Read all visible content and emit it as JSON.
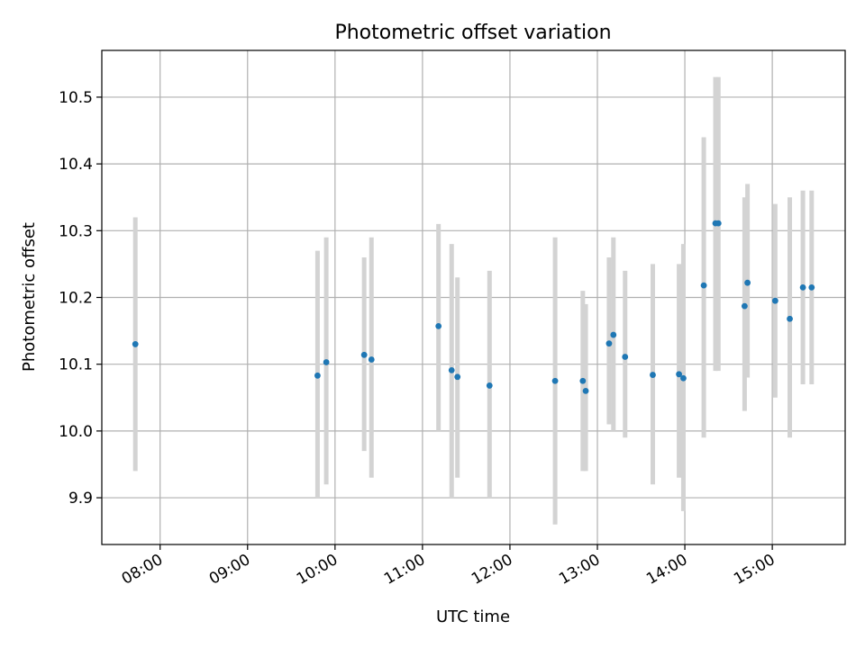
{
  "chart_data": {
    "type": "scatter",
    "title": "Photometric offset variation",
    "xlabel": "UTC time",
    "ylabel": "Photometric offset",
    "x_axis_type": "time",
    "xlim": [
      "07:20",
      "15:50"
    ],
    "ylim": [
      9.83,
      10.57
    ],
    "x_ticks": [
      "08:00",
      "09:00",
      "10:00",
      "11:00",
      "12:00",
      "13:00",
      "14:00",
      "15:00"
    ],
    "y_ticks": [
      9.9,
      10.0,
      10.1,
      10.2,
      10.3,
      10.4,
      10.5
    ],
    "y_tick_labels": [
      "9.9",
      "10.0",
      "10.1",
      "10.2",
      "10.3",
      "10.4",
      "10.5"
    ],
    "grid": true,
    "x_tick_rotation_deg": 30,
    "colors": {
      "point": "#1f77b4",
      "error_bar": "#d3d3d3"
    },
    "points": [
      {
        "time": "07:43",
        "y": 10.13,
        "y_low": 9.94,
        "y_high": 10.32
      },
      {
        "time": "09:48",
        "y": 10.083,
        "y_low": 9.9,
        "y_high": 10.27
      },
      {
        "time": "09:54",
        "y": 10.103,
        "y_low": 9.92,
        "y_high": 10.29
      },
      {
        "time": "10:20",
        "y": 10.114,
        "y_low": 9.97,
        "y_high": 10.26
      },
      {
        "time": "10:25",
        "y": 10.107,
        "y_low": 9.93,
        "y_high": 10.29
      },
      {
        "time": "11:11",
        "y": 10.157,
        "y_low": 10.0,
        "y_high": 10.31
      },
      {
        "time": "11:20",
        "y": 10.091,
        "y_low": 9.9,
        "y_high": 10.28
      },
      {
        "time": "11:24",
        "y": 10.081,
        "y_low": 9.93,
        "y_high": 10.23
      },
      {
        "time": "11:46",
        "y": 10.068,
        "y_low": 9.9,
        "y_high": 10.24
      },
      {
        "time": "12:31",
        "y": 10.075,
        "y_low": 9.86,
        "y_high": 10.29
      },
      {
        "time": "12:50",
        "y": 10.075,
        "y_low": 9.94,
        "y_high": 10.21
      },
      {
        "time": "12:52",
        "y": 10.06,
        "y_low": 9.94,
        "y_high": 10.19
      },
      {
        "time": "13:08",
        "y": 10.131,
        "y_low": 10.01,
        "y_high": 10.26
      },
      {
        "time": "13:11",
        "y": 10.144,
        "y_low": 10.0,
        "y_high": 10.29
      },
      {
        "time": "13:19",
        "y": 10.111,
        "y_low": 9.99,
        "y_high": 10.24
      },
      {
        "time": "13:38",
        "y": 10.084,
        "y_low": 9.92,
        "y_high": 10.25
      },
      {
        "time": "13:56",
        "y": 10.085,
        "y_low": 9.93,
        "y_high": 10.25
      },
      {
        "time": "13:59",
        "y": 10.079,
        "y_low": 9.88,
        "y_high": 10.28
      },
      {
        "time": "14:13",
        "y": 10.218,
        "y_low": 9.99,
        "y_high": 10.44
      },
      {
        "time": "14:21",
        "y": 10.311,
        "y_low": 10.09,
        "y_high": 10.53
      },
      {
        "time": "14:23",
        "y": 10.311,
        "y_low": 10.09,
        "y_high": 10.53
      },
      {
        "time": "14:41",
        "y": 10.187,
        "y_low": 10.03,
        "y_high": 10.35
      },
      {
        "time": "14:43",
        "y": 10.222,
        "y_low": 10.08,
        "y_high": 10.37
      },
      {
        "time": "15:02",
        "y": 10.195,
        "y_low": 10.05,
        "y_high": 10.34
      },
      {
        "time": "15:12",
        "y": 10.168,
        "y_low": 9.99,
        "y_high": 10.35
      },
      {
        "time": "15:21",
        "y": 10.215,
        "y_low": 10.07,
        "y_high": 10.36
      },
      {
        "time": "15:27",
        "y": 10.215,
        "y_low": 10.07,
        "y_high": 10.36
      }
    ]
  }
}
